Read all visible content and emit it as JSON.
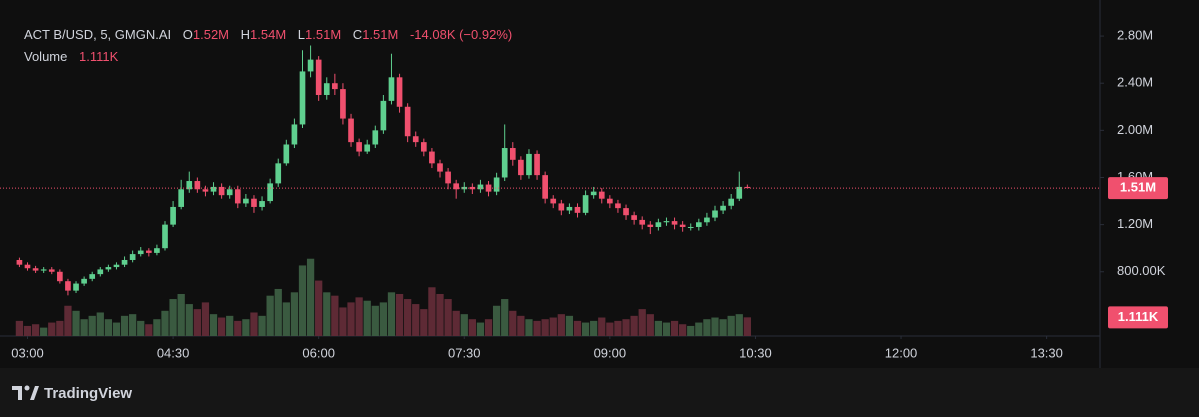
{
  "brand": "TradingView",
  "chart_data": {
    "type": "candlestick",
    "title": "ACT B/USD, 5, GMGN.AI",
    "legend": [
      {
        "key": "O",
        "value": "1.52M"
      },
      {
        "key": "H",
        "value": "1.54M"
      },
      {
        "key": "L",
        "value": "1.51M"
      },
      {
        "key": "C",
        "value": "1.51M"
      }
    ],
    "change": "-14.08K (−0.92%)",
    "volume_title": "Volume",
    "volume_value": "1.111K",
    "last_price_label": "1.51M",
    "last_volume_label": "1.111K",
    "up_color": "#5fcf8f",
    "down_color": "#f0506e",
    "volume_up_color": "#3a5a40",
    "volume_down_color": "#5e2a35",
    "xlim": [
      163,
      843
    ],
    "xticks": [
      {
        "value": 180,
        "label": "03:00"
      },
      {
        "value": 270,
        "label": "04:30"
      },
      {
        "value": 360,
        "label": "06:00"
      },
      {
        "value": 450,
        "label": "07:30"
      },
      {
        "value": 540,
        "label": "09:00"
      },
      {
        "value": 630,
        "label": "10:30"
      },
      {
        "value": 720,
        "label": "12:00"
      },
      {
        "value": 810,
        "label": "13:30"
      }
    ],
    "ylim": [
      255000,
      3106000
    ],
    "yticks": [
      {
        "value": 800000,
        "label": "800.00K"
      },
      {
        "value": 1200000,
        "label": "1.20M"
      },
      {
        "value": 1600000,
        "label": "1.60M"
      },
      {
        "value": 2000000,
        "label": "2.00M"
      },
      {
        "value": 2400000,
        "label": "2.40M"
      },
      {
        "value": 2800000,
        "label": "2.80M"
      }
    ],
    "y2lim": [
      0,
      20000
    ],
    "x": [
      175,
      180,
      185,
      190,
      195,
      200,
      205,
      210,
      215,
      220,
      225,
      230,
      235,
      240,
      245,
      250,
      255,
      260,
      265,
      270,
      275,
      280,
      285,
      290,
      295,
      300,
      305,
      310,
      315,
      320,
      325,
      330,
      335,
      340,
      345,
      350,
      355,
      360,
      365,
      370,
      375,
      380,
      385,
      390,
      395,
      400,
      405,
      410,
      415,
      420,
      425,
      430,
      435,
      440,
      445,
      450,
      455,
      460,
      465,
      470,
      475,
      480,
      485,
      490,
      495,
      500,
      505,
      510,
      515,
      520,
      525,
      530,
      535,
      540,
      545,
      550,
      555,
      560,
      565,
      570,
      575,
      580,
      585,
      590,
      595,
      600,
      605,
      610,
      615,
      620,
      625
    ],
    "open": [
      900000,
      860000,
      830000,
      810000,
      820000,
      800000,
      720000,
      640000,
      700000,
      740000,
      780000,
      820000,
      840000,
      860000,
      900000,
      950000,
      980000,
      960000,
      1000000,
      1200000,
      1350000,
      1500000,
      1570000,
      1500000,
      1480000,
      1520000,
      1450000,
      1500000,
      1380000,
      1420000,
      1350000,
      1400000,
      1550000,
      1720000,
      1880000,
      2050000,
      2500000,
      2600000,
      2300000,
      2400000,
      2350000,
      2100000,
      1900000,
      1820000,
      1880000,
      2000000,
      2250000,
      2450000,
      2200000,
      1950000,
      1900000,
      1820000,
      1720000,
      1650000,
      1550000,
      1500000,
      1520000,
      1500000,
      1540000,
      1480000,
      1600000,
      1850000,
      1750000,
      1620000,
      1800000,
      1620000,
      1420000,
      1380000,
      1320000,
      1350000,
      1300000,
      1450000,
      1480000,
      1420000,
      1380000,
      1340000,
      1280000,
      1240000,
      1200000,
      1180000,
      1220000,
      1230000,
      1200000,
      1180000,
      1180000,
      1220000,
      1260000,
      1320000,
      1360000,
      1420000,
      1520000
    ],
    "high": [
      920000,
      880000,
      850000,
      840000,
      840000,
      820000,
      740000,
      720000,
      760000,
      800000,
      840000,
      860000,
      880000,
      930000,
      980000,
      1010000,
      1000000,
      1030000,
      1230000,
      1400000,
      1580000,
      1650000,
      1600000,
      1530000,
      1560000,
      1550000,
      1530000,
      1530000,
      1460000,
      1450000,
      1440000,
      1590000,
      1760000,
      1920000,
      2100000,
      2680000,
      2720000,
      2630000,
      2450000,
      2480000,
      2400000,
      2140000,
      1930000,
      1920000,
      2040000,
      2300000,
      2650000,
      2480000,
      2230000,
      1990000,
      1930000,
      1850000,
      1750000,
      1680000,
      1580000,
      1560000,
      1550000,
      1580000,
      1570000,
      1640000,
      2050000,
      1900000,
      1780000,
      1840000,
      1830000,
      1650000,
      1450000,
      1410000,
      1380000,
      1380000,
      1490000,
      1520000,
      1510000,
      1450000,
      1410000,
      1370000,
      1310000,
      1270000,
      1230000,
      1250000,
      1260000,
      1260000,
      1230000,
      1210000,
      1250000,
      1300000,
      1360000,
      1400000,
      1460000,
      1650000,
      1540000
    ],
    "low": [
      840000,
      810000,
      790000,
      790000,
      780000,
      700000,
      600000,
      620000,
      680000,
      720000,
      760000,
      800000,
      820000,
      840000,
      880000,
      930000,
      930000,
      940000,
      980000,
      1180000,
      1330000,
      1470000,
      1470000,
      1440000,
      1450000,
      1420000,
      1420000,
      1340000,
      1350000,
      1300000,
      1320000,
      1380000,
      1520000,
      1700000,
      1850000,
      2020000,
      2450000,
      2250000,
      2260000,
      2300000,
      2050000,
      1860000,
      1780000,
      1800000,
      1850000,
      1970000,
      2220000,
      2150000,
      1900000,
      1860000,
      1780000,
      1680000,
      1600000,
      1500000,
      1420000,
      1470000,
      1460000,
      1470000,
      1440000,
      1450000,
      1570000,
      1700000,
      1580000,
      1590000,
      1580000,
      1380000,
      1340000,
      1280000,
      1290000,
      1260000,
      1280000,
      1420000,
      1380000,
      1340000,
      1300000,
      1240000,
      1200000,
      1160000,
      1120000,
      1150000,
      1190000,
      1160000,
      1140000,
      1150000,
      1150000,
      1190000,
      1230000,
      1290000,
      1330000,
      1400000,
      1510000
    ],
    "close": [
      860000,
      830000,
      810000,
      820000,
      800000,
      720000,
      640000,
      700000,
      740000,
      780000,
      820000,
      840000,
      860000,
      900000,
      950000,
      980000,
      960000,
      1000000,
      1200000,
      1350000,
      1500000,
      1570000,
      1500000,
      1480000,
      1520000,
      1450000,
      1500000,
      1380000,
      1420000,
      1350000,
      1400000,
      1550000,
      1720000,
      1880000,
      2050000,
      2500000,
      2600000,
      2300000,
      2400000,
      2350000,
      2100000,
      1900000,
      1820000,
      1880000,
      2000000,
      2250000,
      2450000,
      2200000,
      1950000,
      1900000,
      1820000,
      1720000,
      1650000,
      1550000,
      1500000,
      1520000,
      1500000,
      1540000,
      1480000,
      1600000,
      1850000,
      1750000,
      1620000,
      1800000,
      1620000,
      1420000,
      1380000,
      1320000,
      1350000,
      1300000,
      1450000,
      1480000,
      1420000,
      1380000,
      1340000,
      1280000,
      1240000,
      1200000,
      1180000,
      1220000,
      1230000,
      1200000,
      1180000,
      1180000,
      1220000,
      1260000,
      1320000,
      1360000,
      1420000,
      1520000,
      1510000
    ],
    "volume": [
      900,
      600,
      700,
      500,
      800,
      900,
      1800,
      1500,
      1000,
      1200,
      1400,
      1000,
      800,
      1200,
      1300,
      900,
      700,
      1000,
      1500,
      2200,
      2500,
      1900,
      1600,
      2000,
      1300,
      1100,
      1200,
      900,
      1000,
      1400,
      1200,
      2400,
      2800,
      2000,
      2600,
      4200,
      4600,
      3300,
      2600,
      2400,
      1700,
      2000,
      2300,
      2100,
      1800,
      2000,
      2600,
      2500,
      2200,
      1900,
      1600,
      2900,
      2500,
      2200,
      1500,
      1300,
      1000,
      800,
      1000,
      1800,
      2200,
      1500,
      1200,
      1000,
      900,
      1000,
      1100,
      1300,
      1200,
      900,
      800,
      900,
      1100,
      800,
      900,
      1000,
      1200,
      1600,
      1300,
      900,
      800,
      900,
      700,
      600,
      800,
      1000,
      1100,
      1000,
      1200,
      1300,
      1111
    ]
  }
}
